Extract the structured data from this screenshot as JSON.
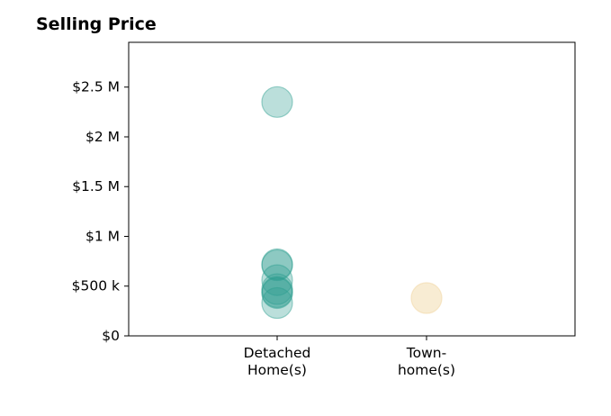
{
  "chart_data": {
    "type": "scatter",
    "title": "Selling Price",
    "xlabel": "",
    "ylabel": "",
    "categories": [
      [
        "Detached",
        "Home(s)"
      ],
      [
        "Town-",
        "home(s)"
      ]
    ],
    "ylim": [
      0,
      2950000
    ],
    "yticks": [
      0,
      500000,
      1000000,
      1500000,
      2000000,
      2500000
    ],
    "yticklabels": [
      "$0",
      "$500 k",
      "$1 M",
      "$1.5 M",
      "$2 M",
      "$2.5 M"
    ],
    "grid": false,
    "series": [
      {
        "category_index": 0,
        "color": "#2a9d8f",
        "values": [
          2350000,
          720000,
          710000,
          560000,
          470000,
          440000,
          430000,
          330000
        ]
      },
      {
        "category_index": 1,
        "color": "#f1d9a8",
        "values": [
          380000
        ]
      }
    ]
  }
}
